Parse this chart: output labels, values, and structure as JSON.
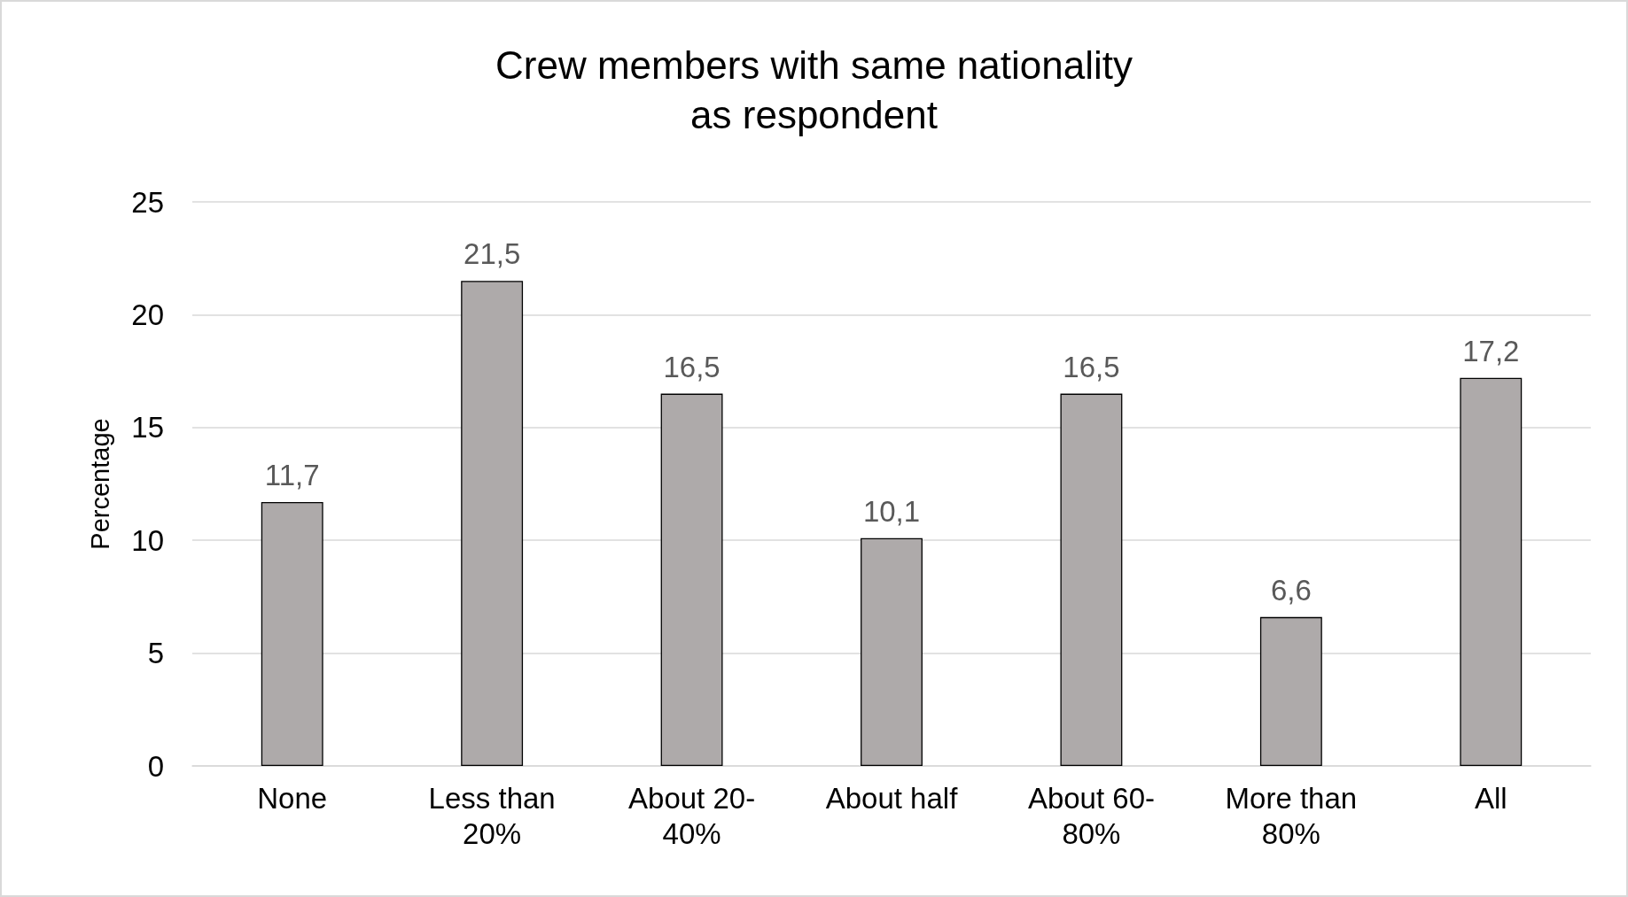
{
  "chart_data": {
    "type": "bar",
    "title": "Crew members with same nationality\nas respondent",
    "ylabel": "Percentage",
    "categories": [
      "None",
      "Less than 20%",
      "About 20-40%",
      "About half",
      "About 60-80%",
      "More than 80%",
      "All"
    ],
    "values": [
      11.7,
      21.5,
      16.5,
      10.1,
      16.5,
      6.6,
      17.2
    ],
    "value_labels": [
      "11,7",
      "21,5",
      "16,5",
      "10,1",
      "16,5",
      "6,6",
      "17,2"
    ],
    "color": "#aeaaaa",
    "ylim": [
      0,
      25
    ],
    "yticks": [
      0,
      5,
      10,
      15,
      20,
      25
    ],
    "grid": "y"
  }
}
